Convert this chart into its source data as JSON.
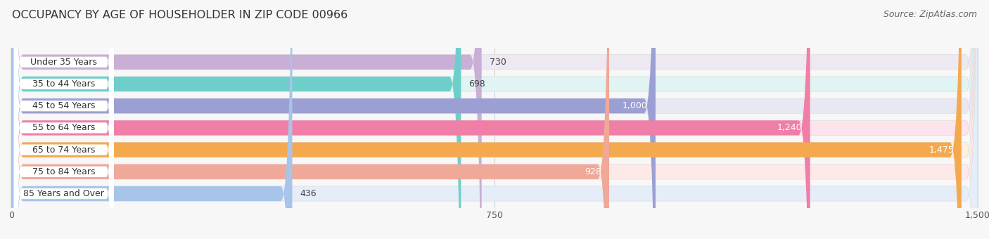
{
  "title": "OCCUPANCY BY AGE OF HOUSEHOLDER IN ZIP CODE 00966",
  "source": "Source: ZipAtlas.com",
  "categories": [
    "Under 35 Years",
    "35 to 44 Years",
    "45 to 54 Years",
    "55 to 64 Years",
    "65 to 74 Years",
    "75 to 84 Years",
    "85 Years and Over"
  ],
  "values": [
    730,
    698,
    1000,
    1240,
    1475,
    928,
    436
  ],
  "bar_colors": [
    "#c9aed6",
    "#6ecfca",
    "#9b9fd4",
    "#f07fa8",
    "#f5a94e",
    "#f0a898",
    "#a8c4e8"
  ],
  "bar_bg_colors": [
    "#ede8f2",
    "#e0f4f3",
    "#e8e8f2",
    "#fce4ec",
    "#fef0e0",
    "#fdeae8",
    "#e4edf8"
  ],
  "xlim": [
    0,
    1500
  ],
  "xticks": [
    0,
    750,
    1500
  ],
  "inside_threshold": 900,
  "background_color": "#f7f7f7",
  "title_fontsize": 11.5,
  "source_fontsize": 9,
  "label_fontsize": 9,
  "value_fontsize": 9,
  "label_pill_color": "#ffffff"
}
